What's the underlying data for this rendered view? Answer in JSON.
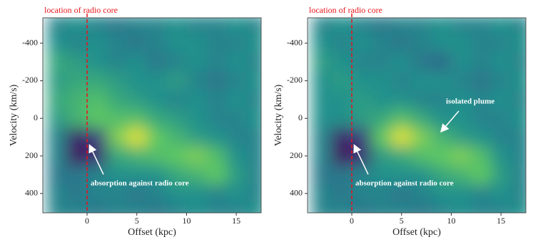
{
  "chart_data": [
    {
      "type": "heatmap",
      "xlabel": "Offset (kpc)",
      "ylabel": "Velocity (km/s)",
      "xlim": [
        -4.45,
        17.5
      ],
      "ylim": [
        -535,
        503
      ],
      "y_inverted": true,
      "xticks": [
        0,
        5,
        10,
        15
      ],
      "yticks": [
        -400,
        -200,
        0,
        200,
        400
      ],
      "x": [
        -3,
        -1,
        1,
        3,
        5,
        7,
        9,
        11,
        13,
        15,
        17
      ],
      "y": [
        -500,
        -400,
        -300,
        -200,
        -100,
        0,
        100,
        200,
        300,
        400,
        500
      ],
      "z": [
        [
          0.45,
          0.5,
          0.45,
          0.4,
          0.45,
          0.45,
          0.5,
          0.45,
          0.45,
          0.5,
          0.45
        ],
        [
          0.5,
          0.45,
          0.5,
          0.45,
          0.4,
          0.45,
          0.5,
          0.5,
          0.45,
          0.45,
          0.5
        ],
        [
          0.6,
          0.55,
          0.5,
          0.45,
          0.5,
          0.4,
          0.45,
          0.5,
          0.45,
          0.5,
          0.45
        ],
        [
          0.55,
          0.6,
          0.6,
          0.55,
          0.5,
          0.5,
          0.55,
          0.45,
          0.4,
          0.45,
          0.5
        ],
        [
          0.6,
          0.65,
          0.7,
          0.6,
          0.55,
          0.5,
          0.45,
          0.5,
          0.45,
          0.5,
          0.45
        ],
        [
          0.55,
          0.65,
          0.75,
          0.7,
          0.7,
          0.6,
          0.55,
          0.5,
          0.45,
          0.45,
          0.5
        ],
        [
          0.45,
          0.1,
          0.2,
          0.8,
          0.95,
          0.75,
          0.65,
          0.55,
          0.5,
          0.45,
          0.45
        ],
        [
          0.45,
          0.05,
          0.15,
          0.6,
          0.65,
          0.7,
          0.75,
          0.8,
          0.7,
          0.5,
          0.45
        ],
        [
          0.4,
          0.4,
          0.45,
          0.5,
          0.5,
          0.5,
          0.6,
          0.65,
          0.75,
          0.55,
          0.45
        ],
        [
          0.45,
          0.4,
          0.45,
          0.45,
          0.4,
          0.45,
          0.5,
          0.5,
          0.45,
          0.5,
          0.45
        ],
        [
          0.45,
          0.45,
          0.4,
          0.45,
          0.45,
          0.4,
          0.45,
          0.5,
          0.45,
          0.45,
          0.5
        ]
      ],
      "zlim": [
        0,
        1
      ],
      "colormap": [
        "#440154",
        "#3b528b",
        "#21918c",
        "#5ec962",
        "#fde725"
      ],
      "vline": {
        "value": 0,
        "label": "location of radio core",
        "color": "#e8141a"
      },
      "annotations": [
        {
          "text": "absorption against radio core"
        }
      ]
    },
    {
      "type": "heatmap",
      "xlabel": "Offset (kpc)",
      "ylabel": "Velocity (km/s)",
      "xlim": [
        -4.45,
        17.5
      ],
      "ylim": [
        -535,
        503
      ],
      "y_inverted": true,
      "xticks": [
        0,
        5,
        10,
        15
      ],
      "yticks": [
        -400,
        -200,
        0,
        200,
        400
      ],
      "x": [
        -3,
        -1,
        1,
        3,
        5,
        7,
        9,
        11,
        13,
        15,
        17
      ],
      "y": [
        -500,
        -400,
        -300,
        -200,
        -100,
        0,
        100,
        200,
        300,
        400,
        500
      ],
      "z": [
        [
          0.45,
          0.5,
          0.45,
          0.4,
          0.45,
          0.45,
          0.5,
          0.45,
          0.45,
          0.5,
          0.45
        ],
        [
          0.5,
          0.45,
          0.5,
          0.45,
          0.4,
          0.45,
          0.5,
          0.5,
          0.45,
          0.45,
          0.5
        ],
        [
          0.55,
          0.5,
          0.45,
          0.45,
          0.5,
          0.4,
          0.35,
          0.5,
          0.45,
          0.5,
          0.45
        ],
        [
          0.5,
          0.55,
          0.5,
          0.5,
          0.45,
          0.5,
          0.5,
          0.45,
          0.4,
          0.45,
          0.5
        ],
        [
          0.5,
          0.5,
          0.55,
          0.5,
          0.5,
          0.45,
          0.45,
          0.5,
          0.45,
          0.5,
          0.45
        ],
        [
          0.5,
          0.5,
          0.55,
          0.6,
          0.7,
          0.6,
          0.5,
          0.5,
          0.45,
          0.45,
          0.5
        ],
        [
          0.45,
          0.1,
          0.2,
          0.75,
          0.95,
          0.8,
          0.65,
          0.55,
          0.5,
          0.45,
          0.45
        ],
        [
          0.45,
          0.05,
          0.15,
          0.55,
          0.6,
          0.7,
          0.75,
          0.8,
          0.7,
          0.5,
          0.45
        ],
        [
          0.4,
          0.4,
          0.45,
          0.5,
          0.5,
          0.5,
          0.6,
          0.65,
          0.75,
          0.55,
          0.45
        ],
        [
          0.45,
          0.4,
          0.45,
          0.45,
          0.4,
          0.45,
          0.5,
          0.5,
          0.45,
          0.5,
          0.45
        ],
        [
          0.45,
          0.45,
          0.4,
          0.45,
          0.45,
          0.4,
          0.45,
          0.5,
          0.45,
          0.45,
          0.5
        ]
      ],
      "zlim": [
        0,
        1
      ],
      "colormap": [
        "#440154",
        "#3b528b",
        "#21918c",
        "#5ec962",
        "#fde725"
      ],
      "vline": {
        "value": 0,
        "label": "location of radio core",
        "color": "#e8141a"
      },
      "annotations": [
        {
          "text": "absorption against radio core"
        },
        {
          "text": "isolated plume"
        }
      ]
    }
  ]
}
